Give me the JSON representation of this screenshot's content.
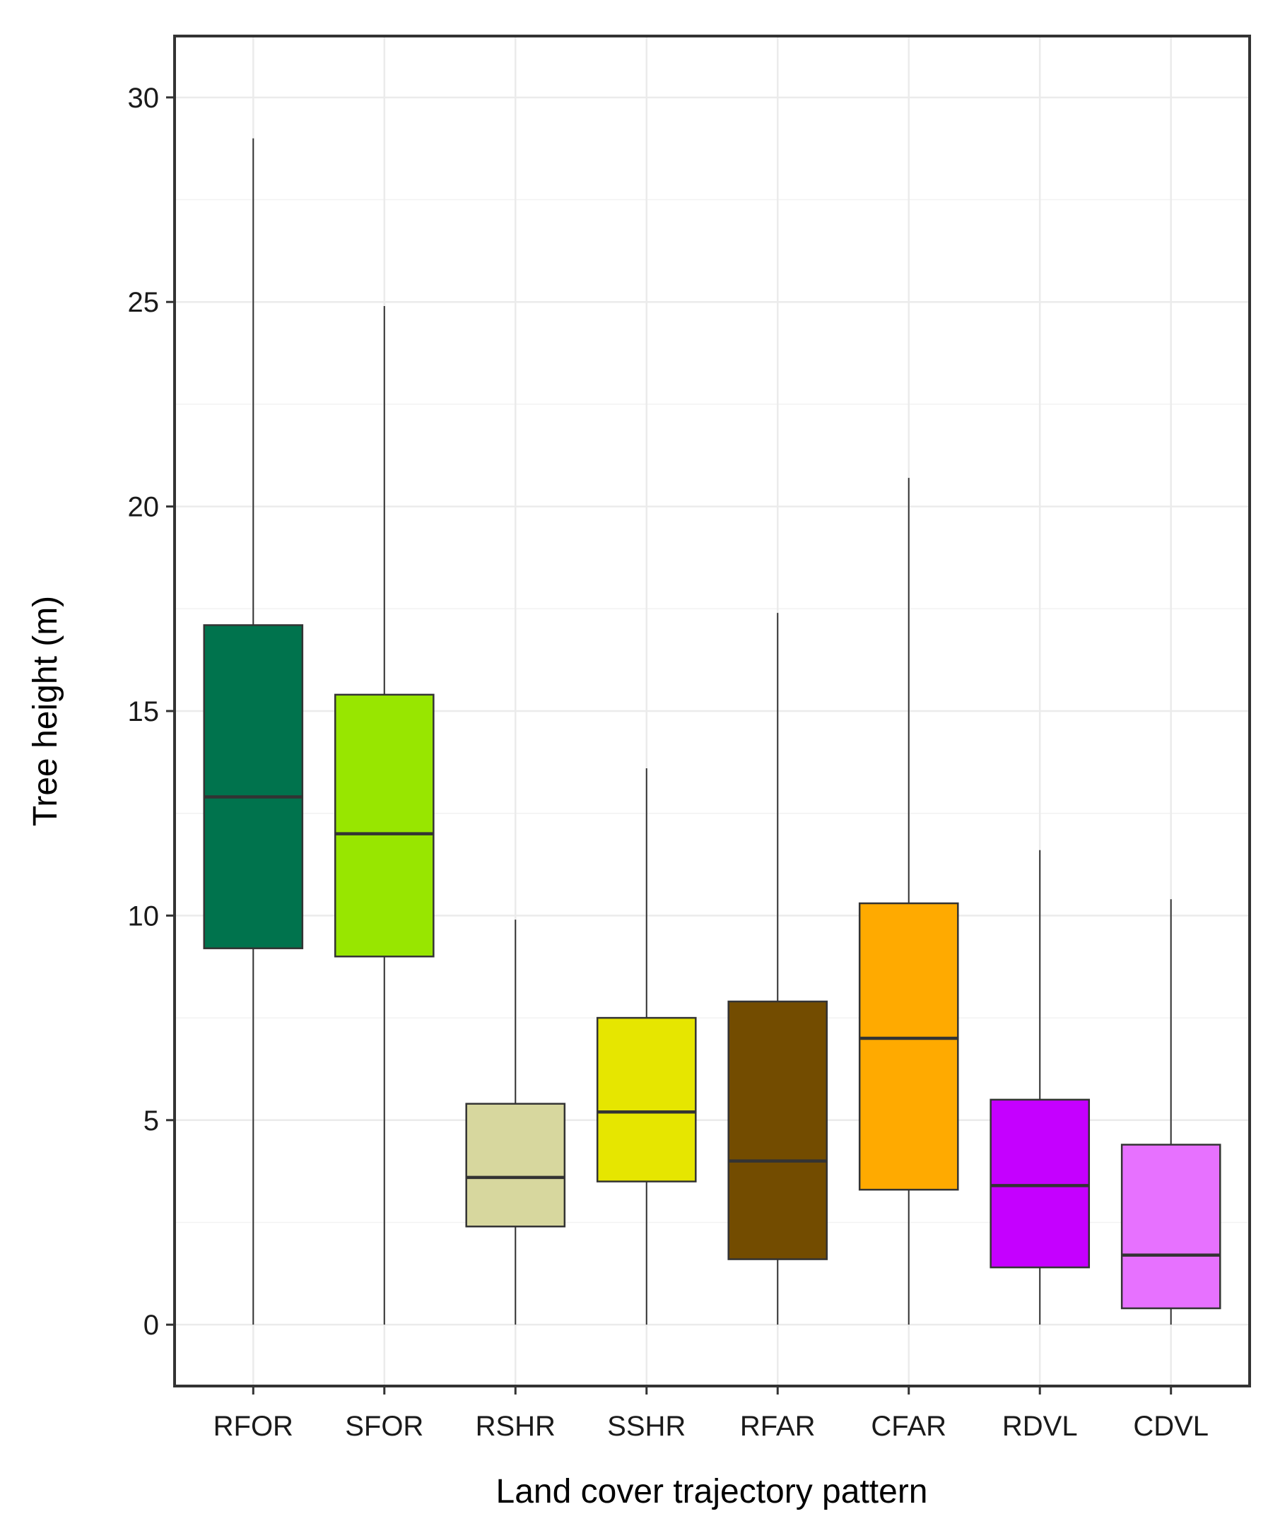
{
  "chart_data": {
    "type": "boxplot",
    "title": "",
    "xlabel": "Land cover trajectory pattern",
    "ylabel": "Tree height (m)",
    "ylim": [
      -1.5,
      31.5
    ],
    "yticks": [
      0,
      5,
      10,
      15,
      20,
      25,
      30
    ],
    "grid": true,
    "legend": "none",
    "categories": [
      "RFOR",
      "SFOR",
      "RSHR",
      "SSHR",
      "RFAR",
      "CFAR",
      "RDVL",
      "CDVL"
    ],
    "series": [
      {
        "name": "RFOR",
        "min": 0,
        "q1": 9.2,
        "median": 12.9,
        "q3": 17.1,
        "max": 29.0,
        "color": "#00734D"
      },
      {
        "name": "SFOR",
        "min": 0,
        "q1": 9.0,
        "median": 12.0,
        "q3": 15.4,
        "max": 24.9,
        "color": "#98E600"
      },
      {
        "name": "RSHR",
        "min": 0,
        "q1": 2.4,
        "median": 3.6,
        "q3": 5.4,
        "max": 9.9,
        "color": "#D7D79E"
      },
      {
        "name": "SSHR",
        "min": 0,
        "q1": 3.5,
        "median": 5.2,
        "q3": 7.5,
        "max": 13.6,
        "color": "#E6E600"
      },
      {
        "name": "RFAR",
        "min": 0,
        "q1": 1.6,
        "median": 4.0,
        "q3": 7.9,
        "max": 17.4,
        "color": "#734C00"
      },
      {
        "name": "CFAR",
        "min": 0,
        "q1": 3.3,
        "median": 7.0,
        "q3": 10.3,
        "max": 20.7,
        "color": "#FFAA00"
      },
      {
        "name": "RDVL",
        "min": 0,
        "q1": 1.4,
        "median": 3.4,
        "q3": 5.5,
        "max": 11.6,
        "color": "#C500FF"
      },
      {
        "name": "CDVL",
        "min": 0,
        "q1": 0.4,
        "median": 1.7,
        "q3": 4.4,
        "max": 10.4,
        "color": "#E771FF"
      }
    ]
  }
}
